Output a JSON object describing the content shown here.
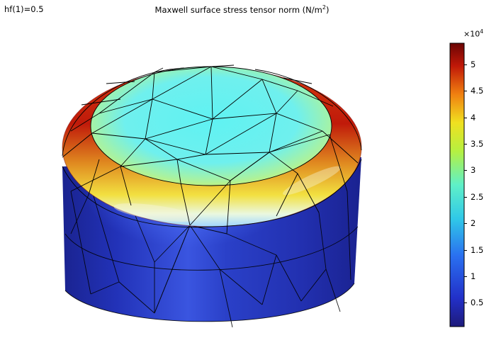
{
  "parameter_label": "hf(1)=0.5",
  "title": {
    "text": "Maxwell surface stress tensor norm (N/m",
    "exponent": "2",
    "close": ")"
  },
  "colorbar": {
    "multiplier_base": "×10",
    "multiplier_exponent": "4",
    "ticks": [
      {
        "label": "5",
        "value": 5
      },
      {
        "label": "4.5",
        "value": 4.5
      },
      {
        "label": "4",
        "value": 4
      },
      {
        "label": "3.5",
        "value": 3.5
      },
      {
        "label": "3",
        "value": 3
      },
      {
        "label": "2.5",
        "value": 2.5
      },
      {
        "label": "2",
        "value": 2
      },
      {
        "label": "1.5",
        "value": 1.5
      },
      {
        "label": "1",
        "value": 1
      },
      {
        "label": "0.5",
        "value": 0.5
      }
    ],
    "range": [
      0.05,
      5.4
    ],
    "colormap": "rainbow (jet)"
  },
  "colors": {
    "low": "#1e2aa8",
    "mid_low": "#4a70ff",
    "mid": "#6ff0f0",
    "mid_high": "#f0e030",
    "high": "#c41810",
    "max": "#7a0505"
  }
}
